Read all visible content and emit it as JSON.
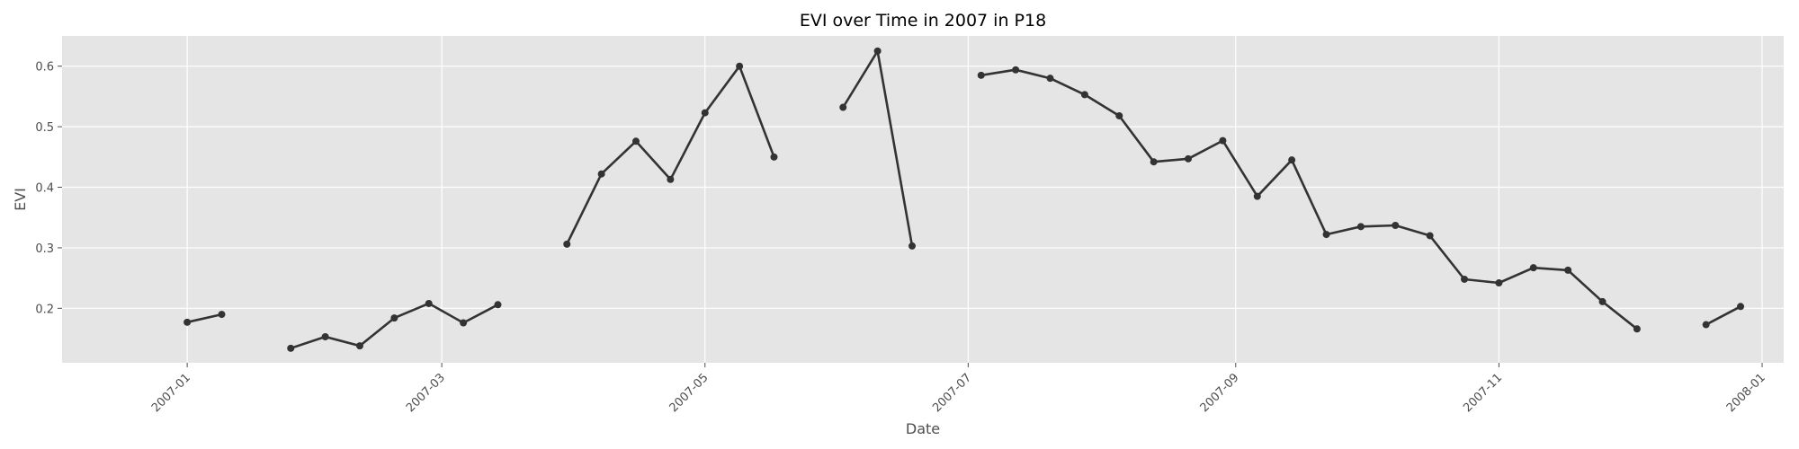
{
  "chart_data": {
    "type": "line",
    "title": "EVI over Time in 2007 in P18",
    "xlabel": "Date",
    "ylabel": "EVI",
    "xlim": [
      "2006-12-03",
      "2008-01-06"
    ],
    "ylim": [
      0.11,
      0.65
    ],
    "x_ticks": [
      "2007-01",
      "2007-03",
      "2007-05",
      "2007-07",
      "2007-09",
      "2007-11",
      "2008-01"
    ],
    "y_ticks": [
      0.2,
      0.3,
      0.4,
      0.5,
      0.6
    ],
    "grid": true,
    "line_color": "#333333",
    "background_color": "#e5e5e5",
    "series": [
      {
        "points": [
          {
            "x": "2007-01-01",
            "y": 0.177
          },
          {
            "x": "2007-01-09",
            "y": 0.19
          },
          {
            "x": "2007-01-17",
            "y": null
          },
          {
            "x": "2007-01-25",
            "y": 0.134
          },
          {
            "x": "2007-02-02",
            "y": 0.153
          },
          {
            "x": "2007-02-10",
            "y": 0.138
          },
          {
            "x": "2007-02-18",
            "y": 0.184
          },
          {
            "x": "2007-02-26",
            "y": 0.208
          },
          {
            "x": "2007-03-06",
            "y": 0.176
          },
          {
            "x": "2007-03-14",
            "y": 0.206
          },
          {
            "x": "2007-03-22",
            "y": null
          },
          {
            "x": "2007-03-30",
            "y": 0.306
          },
          {
            "x": "2007-04-07",
            "y": 0.422
          },
          {
            "x": "2007-04-15",
            "y": 0.476
          },
          {
            "x": "2007-04-23",
            "y": 0.413
          },
          {
            "x": "2007-05-01",
            "y": 0.523
          },
          {
            "x": "2007-05-09",
            "y": 0.6
          },
          {
            "x": "2007-05-17",
            "y": 0.45
          },
          {
            "x": "2007-05-25",
            "y": null
          },
          {
            "x": "2007-06-02",
            "y": 0.532
          },
          {
            "x": "2007-06-10",
            "y": 0.625
          },
          {
            "x": "2007-06-18",
            "y": 0.303
          },
          {
            "x": "2007-06-26",
            "y": null
          },
          {
            "x": "2007-07-04",
            "y": 0.585
          },
          {
            "x": "2007-07-12",
            "y": 0.594
          },
          {
            "x": "2007-07-20",
            "y": 0.58
          },
          {
            "x": "2007-07-28",
            "y": 0.553
          },
          {
            "x": "2007-08-05",
            "y": 0.518
          },
          {
            "x": "2007-08-13",
            "y": 0.442
          },
          {
            "x": "2007-08-21",
            "y": 0.447
          },
          {
            "x": "2007-08-29",
            "y": 0.477
          },
          {
            "x": "2007-09-06",
            "y": 0.385
          },
          {
            "x": "2007-09-14",
            "y": 0.445
          },
          {
            "x": "2007-09-22",
            "y": 0.322
          },
          {
            "x": "2007-09-30",
            "y": 0.335
          },
          {
            "x": "2007-10-08",
            "y": 0.337
          },
          {
            "x": "2007-10-16",
            "y": 0.32
          },
          {
            "x": "2007-10-24",
            "y": 0.248
          },
          {
            "x": "2007-11-01",
            "y": 0.242
          },
          {
            "x": "2007-11-09",
            "y": 0.267
          },
          {
            "x": "2007-11-17",
            "y": 0.263
          },
          {
            "x": "2007-11-25",
            "y": 0.211
          },
          {
            "x": "2007-12-03",
            "y": 0.166
          },
          {
            "x": "2007-12-11",
            "y": null
          },
          {
            "x": "2007-12-19",
            "y": 0.173
          },
          {
            "x": "2007-12-27",
            "y": 0.203
          }
        ]
      }
    ]
  }
}
